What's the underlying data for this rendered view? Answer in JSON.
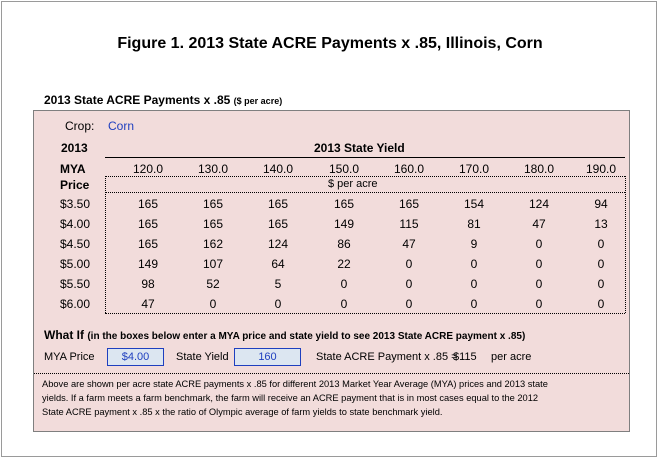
{
  "figure_title": "Figure 1. 2013 State ACRE Payments x .85, Illinois, Corn",
  "section_title": "2013 State ACRE Payments x .85",
  "section_subtitle": "($ per acre)",
  "crop": {
    "label": "Crop:",
    "value": "Corn"
  },
  "table": {
    "year_label": "2013",
    "yield_header": "2013 State Yield",
    "row_header_line1": "MYA",
    "row_header_line2": "Price",
    "unit_label": "$ per acre",
    "columns": [
      "120.0",
      "130.0",
      "140.0",
      "150.0",
      "160.0",
      "170.0",
      "180.0",
      "190.0"
    ],
    "rows": [
      {
        "price": "$3.50",
        "values": [
          "165",
          "165",
          "165",
          "165",
          "165",
          "154",
          "124",
          "94"
        ]
      },
      {
        "price": "$4.00",
        "values": [
          "165",
          "165",
          "165",
          "149",
          "115",
          "81",
          "47",
          "13"
        ]
      },
      {
        "price": "$4.50",
        "values": [
          "165",
          "162",
          "124",
          "86",
          "47",
          "9",
          "0",
          "0"
        ]
      },
      {
        "price": "$5.00",
        "values": [
          "149",
          "107",
          "64",
          "22",
          "0",
          "0",
          "0",
          "0"
        ]
      },
      {
        "price": "$5.50",
        "values": [
          "98",
          "52",
          "5",
          "0",
          "0",
          "0",
          "0",
          "0"
        ]
      },
      {
        "price": "$6.00",
        "values": [
          "47",
          "0",
          "0",
          "0",
          "0",
          "0",
          "0",
          "0"
        ]
      }
    ]
  },
  "what_if": {
    "title": "What If",
    "note": "(in the boxes below enter a MYA price and state yield to see 2013 State ACRE payment x .85)",
    "mya_label": "MYA Price",
    "mya_value": "$4.00",
    "yield_label": "State Yield",
    "yield_value": "160",
    "result_label": "State ACRE Payment x .85 =",
    "result_value": "$115",
    "result_unit": "per acre"
  },
  "footnote_lines": [
    "Above are shown per acre state ACRE payments x .85 for different 2013 Market Year Average (MYA) prices and 2013 state",
    "yields.  If a farm meets a farm benchmark,  the farm will receive an ACRE payment that is in most cases equal to the 2012",
    "State ACRE payment  x .85 x the ratio of Olympic average of farm yields to state benchmark yield."
  ]
}
